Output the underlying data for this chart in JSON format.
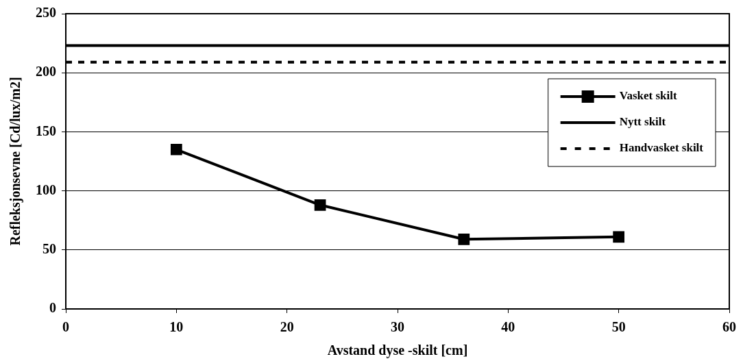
{
  "chart_data": {
    "type": "line",
    "xlabel": "Avstand dyse -skilt [cm]",
    "ylabel": "Refleksjonsevne [Cd/lux/m2]",
    "xlim": [
      0,
      60
    ],
    "xticks": [
      0,
      10,
      20,
      30,
      40,
      50,
      60
    ],
    "ylim": [
      0,
      250
    ],
    "yticks": [
      0,
      50,
      100,
      150,
      200,
      250
    ],
    "grid": "y",
    "legend": "top right",
    "series": [
      {
        "name": "Vasket skilt",
        "color": "#000000",
        "x": [
          10,
          23,
          36,
          50
        ],
        "values": [
          135,
          88,
          59,
          61
        ],
        "marker": "square",
        "line_style": "solid"
      },
      {
        "name": "Nytt skilt",
        "color": "#000000",
        "x": [
          0,
          60
        ],
        "values": [
          223,
          223
        ],
        "marker": "none",
        "line_style": "solid"
      },
      {
        "name": "Handvasket skilt",
        "color": "#000000",
        "x": [
          0,
          60
        ],
        "values": [
          209,
          209
        ],
        "marker": "none",
        "line_style": "dashed"
      }
    ]
  }
}
